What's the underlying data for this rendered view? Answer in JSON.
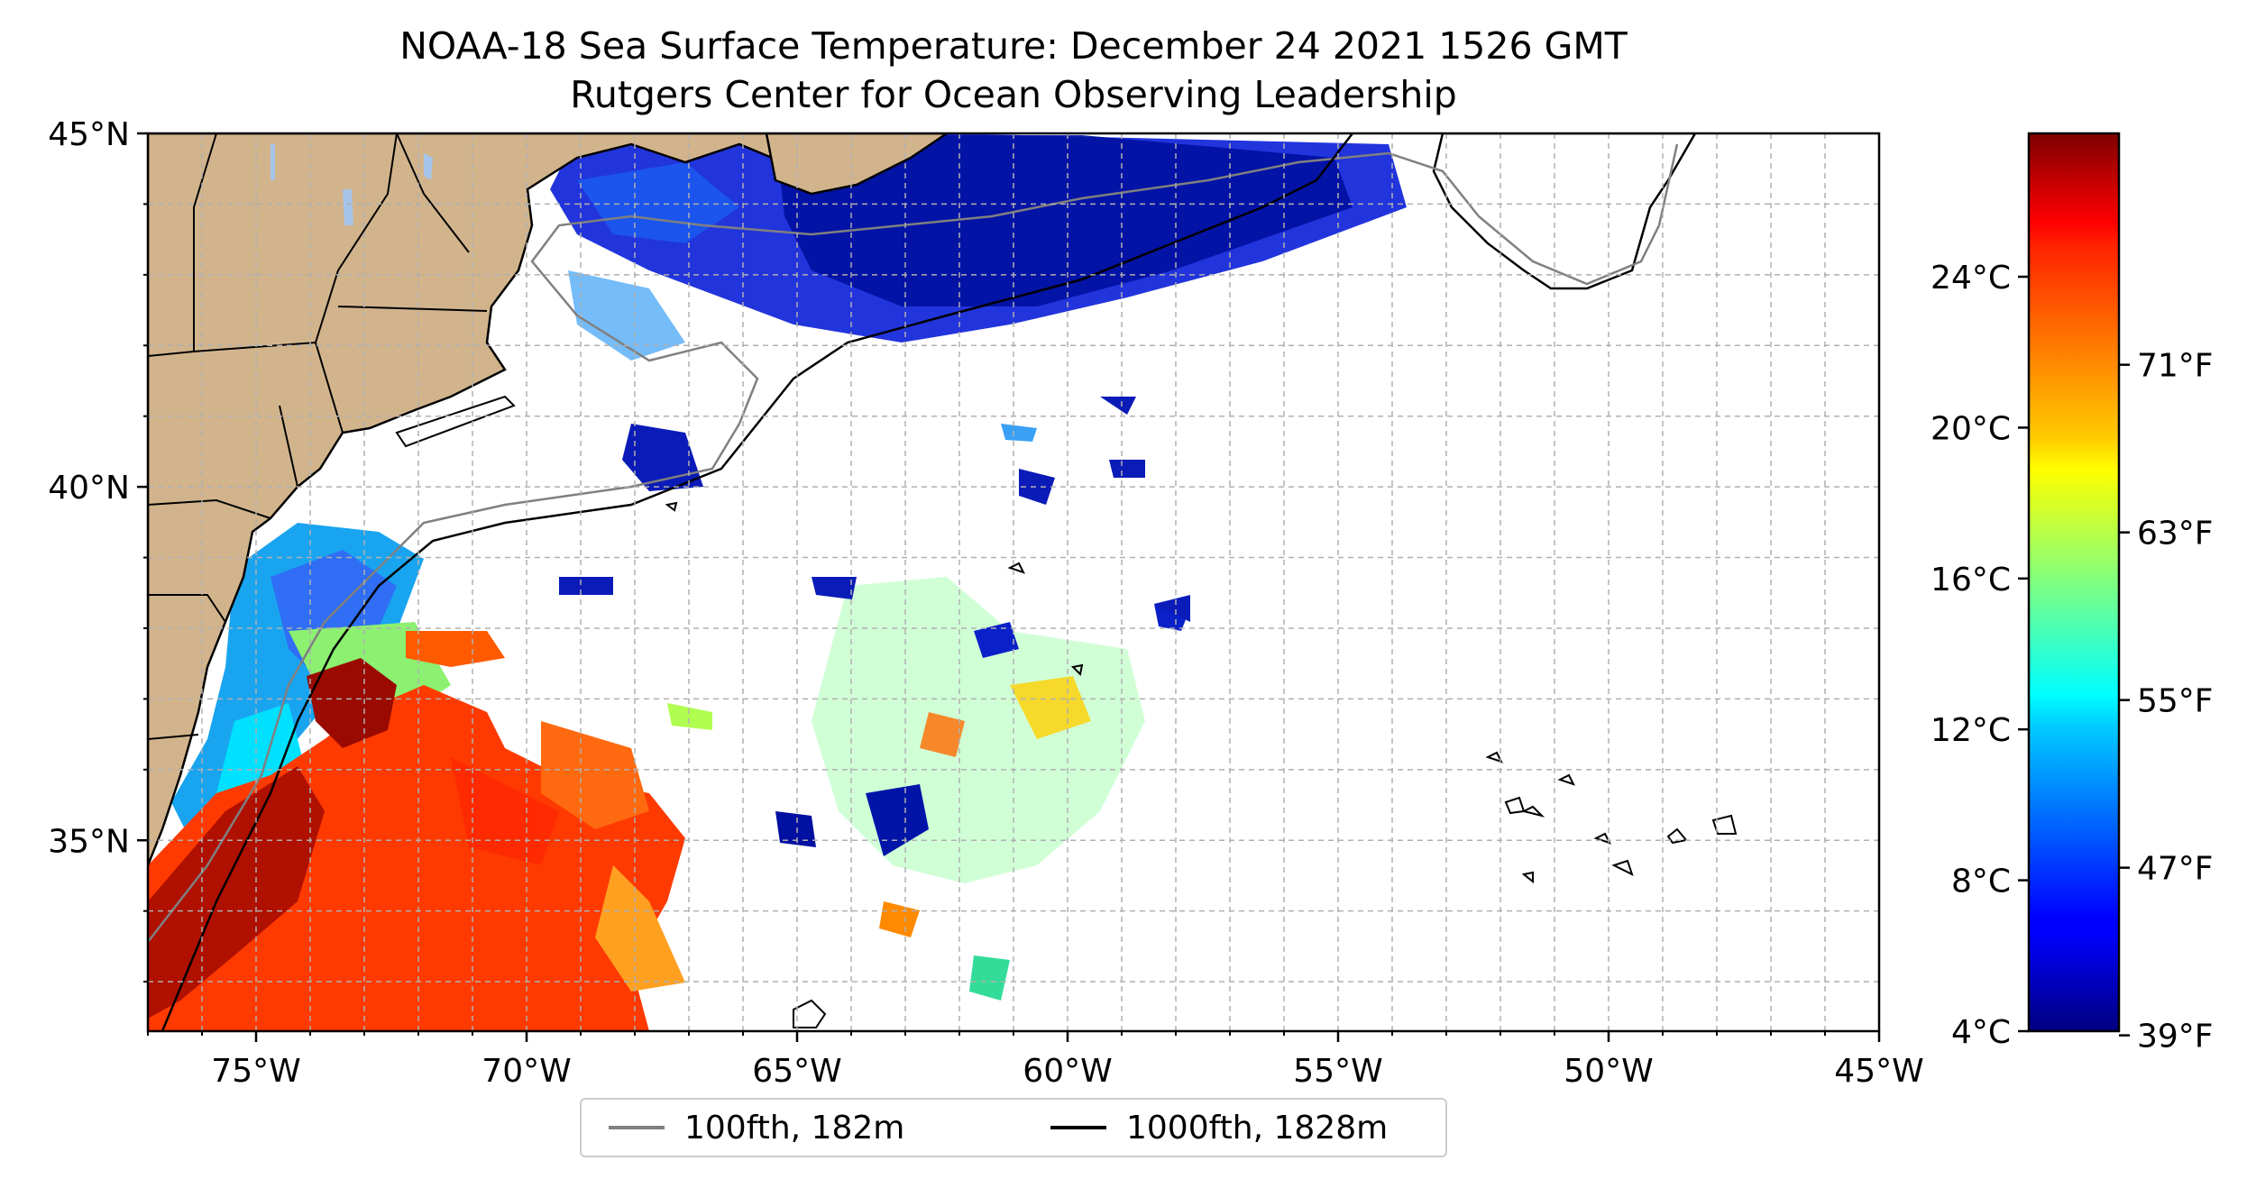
{
  "title": {
    "line1": "NOAA-18 Sea Surface Temperature: December 24 2021 1526 GMT",
    "line2": "Rutgers Center for Ocean Observing Leadership"
  },
  "map": {
    "lon_range": [
      -77,
      -45
    ],
    "lat_range": [
      32.3,
      45
    ],
    "land_color": "#d2b48c",
    "lake_color": "#a6c4ea",
    "grid": true,
    "x_ticks": [
      {
        "lon": -75,
        "label": "75°W"
      },
      {
        "lon": -70,
        "label": "70°W"
      },
      {
        "lon": -65,
        "label": "65°W"
      },
      {
        "lon": -60,
        "label": "60°W"
      },
      {
        "lon": -55,
        "label": "55°W"
      },
      {
        "lon": -50,
        "label": "50°W"
      },
      {
        "lon": -45,
        "label": "45°W"
      }
    ],
    "y_ticks": [
      {
        "lat": 45,
        "label": "45°N"
      },
      {
        "lat": 40,
        "label": "40°N"
      },
      {
        "lat": 35,
        "label": "35°N"
      }
    ]
  },
  "colorbar": {
    "colormap": "jet",
    "celsius_ticks": [
      {
        "value": 4,
        "label": "4°C"
      },
      {
        "value": 8,
        "label": "8°C"
      },
      {
        "value": 12,
        "label": "12°C"
      },
      {
        "value": 16,
        "label": "16°C"
      },
      {
        "value": 20,
        "label": "20°C"
      },
      {
        "value": 24,
        "label": "24°C"
      }
    ],
    "fahrenheit_ticks": [
      {
        "value": 39,
        "label": "39°F"
      },
      {
        "value": 47,
        "label": "47°F"
      },
      {
        "value": 55,
        "label": "55°F"
      },
      {
        "value": 63,
        "label": "63°F"
      },
      {
        "value": 71,
        "label": "71°F"
      }
    ]
  },
  "legend": {
    "items": [
      {
        "label": "100fth, 182m",
        "color": "#808080"
      },
      {
        "label": "1000fth, 1828m",
        "color": "#000000"
      }
    ]
  }
}
